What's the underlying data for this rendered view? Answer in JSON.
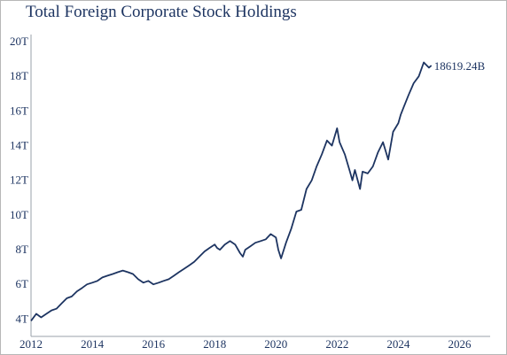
{
  "chart_data": {
    "type": "line",
    "title": "Total Foreign Corporate Stock Holdings",
    "xlabel": "",
    "ylabel": "",
    "xlim": [
      2012,
      2027
    ],
    "ylim": [
      3,
      20
    ],
    "x_ticks": [
      {
        "value": 2012,
        "label": "2012"
      },
      {
        "value": 2014,
        "label": "2014"
      },
      {
        "value": 2016,
        "label": "2016"
      },
      {
        "value": 2018,
        "label": "2018"
      },
      {
        "value": 2020,
        "label": "2020"
      },
      {
        "value": 2022,
        "label": "2022"
      },
      {
        "value": 2024,
        "label": "2024"
      },
      {
        "value": 2026,
        "label": "2026"
      }
    ],
    "y_ticks": [
      {
        "value": 4,
        "label": "4T"
      },
      {
        "value": 6,
        "label": "6T"
      },
      {
        "value": 8,
        "label": "8T"
      },
      {
        "value": 10,
        "label": "10T"
      },
      {
        "value": 12,
        "label": "12T"
      },
      {
        "value": 14,
        "label": "14T"
      },
      {
        "value": 16,
        "label": "16T"
      },
      {
        "value": 18,
        "label": "18T"
      },
      {
        "value": 20,
        "label": "20T"
      }
    ],
    "grid": false,
    "line_color": "#1d3461",
    "end_label": "18619.24B",
    "series": [
      {
        "name": "",
        "x": [
          2012.0,
          2012.17,
          2012.33,
          2012.5,
          2012.67,
          2012.83,
          2013.0,
          2013.17,
          2013.33,
          2013.5,
          2013.67,
          2013.83,
          2014.0,
          2014.17,
          2014.33,
          2014.5,
          2014.67,
          2014.83,
          2015.0,
          2015.17,
          2015.33,
          2015.5,
          2015.67,
          2015.83,
          2016.0,
          2016.17,
          2016.33,
          2016.5,
          2016.67,
          2016.83,
          2017.0,
          2017.17,
          2017.33,
          2017.5,
          2017.67,
          2017.83,
          2018.0,
          2018.08,
          2018.17,
          2018.33,
          2018.5,
          2018.67,
          2018.83,
          2018.92,
          2019.0,
          2019.17,
          2019.33,
          2019.5,
          2019.67,
          2019.83,
          2020.0,
          2020.08,
          2020.17,
          2020.33,
          2020.5,
          2020.67,
          2020.83,
          2021.0,
          2021.17,
          2021.33,
          2021.5,
          2021.67,
          2021.83,
          2022.0,
          2022.08,
          2022.25,
          2022.42,
          2022.5,
          2022.58,
          2022.75,
          2022.83,
          2023.0,
          2023.17,
          2023.33,
          2023.5,
          2023.67,
          2023.83,
          2024.0,
          2024.08,
          2024.17,
          2024.33,
          2024.5,
          2024.67,
          2024.83,
          2025.0,
          2025.08
        ],
        "y": [
          3.9,
          4.3,
          4.1,
          4.3,
          4.5,
          4.6,
          4.9,
          5.2,
          5.3,
          5.6,
          5.8,
          6.0,
          6.1,
          6.2,
          6.4,
          6.5,
          6.6,
          6.7,
          6.8,
          6.7,
          6.6,
          6.3,
          6.1,
          6.2,
          6.0,
          6.1,
          6.2,
          6.3,
          6.5,
          6.7,
          6.9,
          7.1,
          7.3,
          7.6,
          7.9,
          8.1,
          8.3,
          8.1,
          8.0,
          8.3,
          8.5,
          8.3,
          7.8,
          7.6,
          8.0,
          8.2,
          8.4,
          8.5,
          8.6,
          8.9,
          8.7,
          8.0,
          7.5,
          8.4,
          9.2,
          10.2,
          10.3,
          11.5,
          12.0,
          12.8,
          13.5,
          14.3,
          14.0,
          15.0,
          14.2,
          13.5,
          12.5,
          12.0,
          12.6,
          11.5,
          12.5,
          12.4,
          12.8,
          13.6,
          14.2,
          13.2,
          14.8,
          15.3,
          15.8,
          16.2,
          16.9,
          17.6,
          18.0,
          18.8,
          18.5,
          18.62
        ]
      }
    ]
  }
}
